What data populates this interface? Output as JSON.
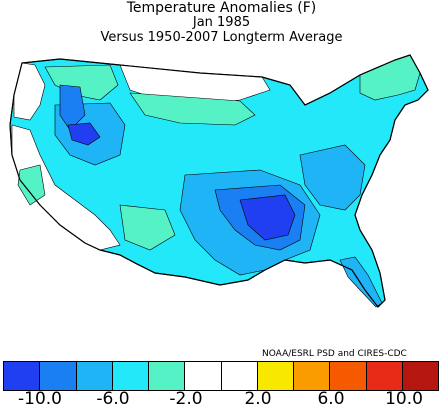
{
  "title": "Temperature Anomalies (F)",
  "subtitle": "Jan 1985",
  "note": "Versus 1950-2007 Longterm Average",
  "credit": "NOAA/ESRL PSD and CIRES-CDC",
  "legend": {
    "colors": [
      "#1f3ff0",
      "#1a7ff2",
      "#1fb4f5",
      "#22e8fa",
      "#55f2c6",
      "#ffffff",
      "#ffffff",
      "#f8e800",
      "#fa9b00",
      "#f55a00",
      "#e82b17",
      "#b5160f"
    ],
    "tick_labels": [
      "-10.0",
      "-6.0",
      "-2.0",
      "2.0",
      "6.0",
      "10.0"
    ]
  },
  "map": {
    "region": "Contiguous United States",
    "colors": {
      "land_none": "#ffffff",
      "cool1": "#55f2c6",
      "cool2": "#22e8fa",
      "cool3": "#1fb4f5",
      "cool4": "#1a7ff2",
      "cool5": "#1f3ff0",
      "outline": "#000000"
    }
  }
}
